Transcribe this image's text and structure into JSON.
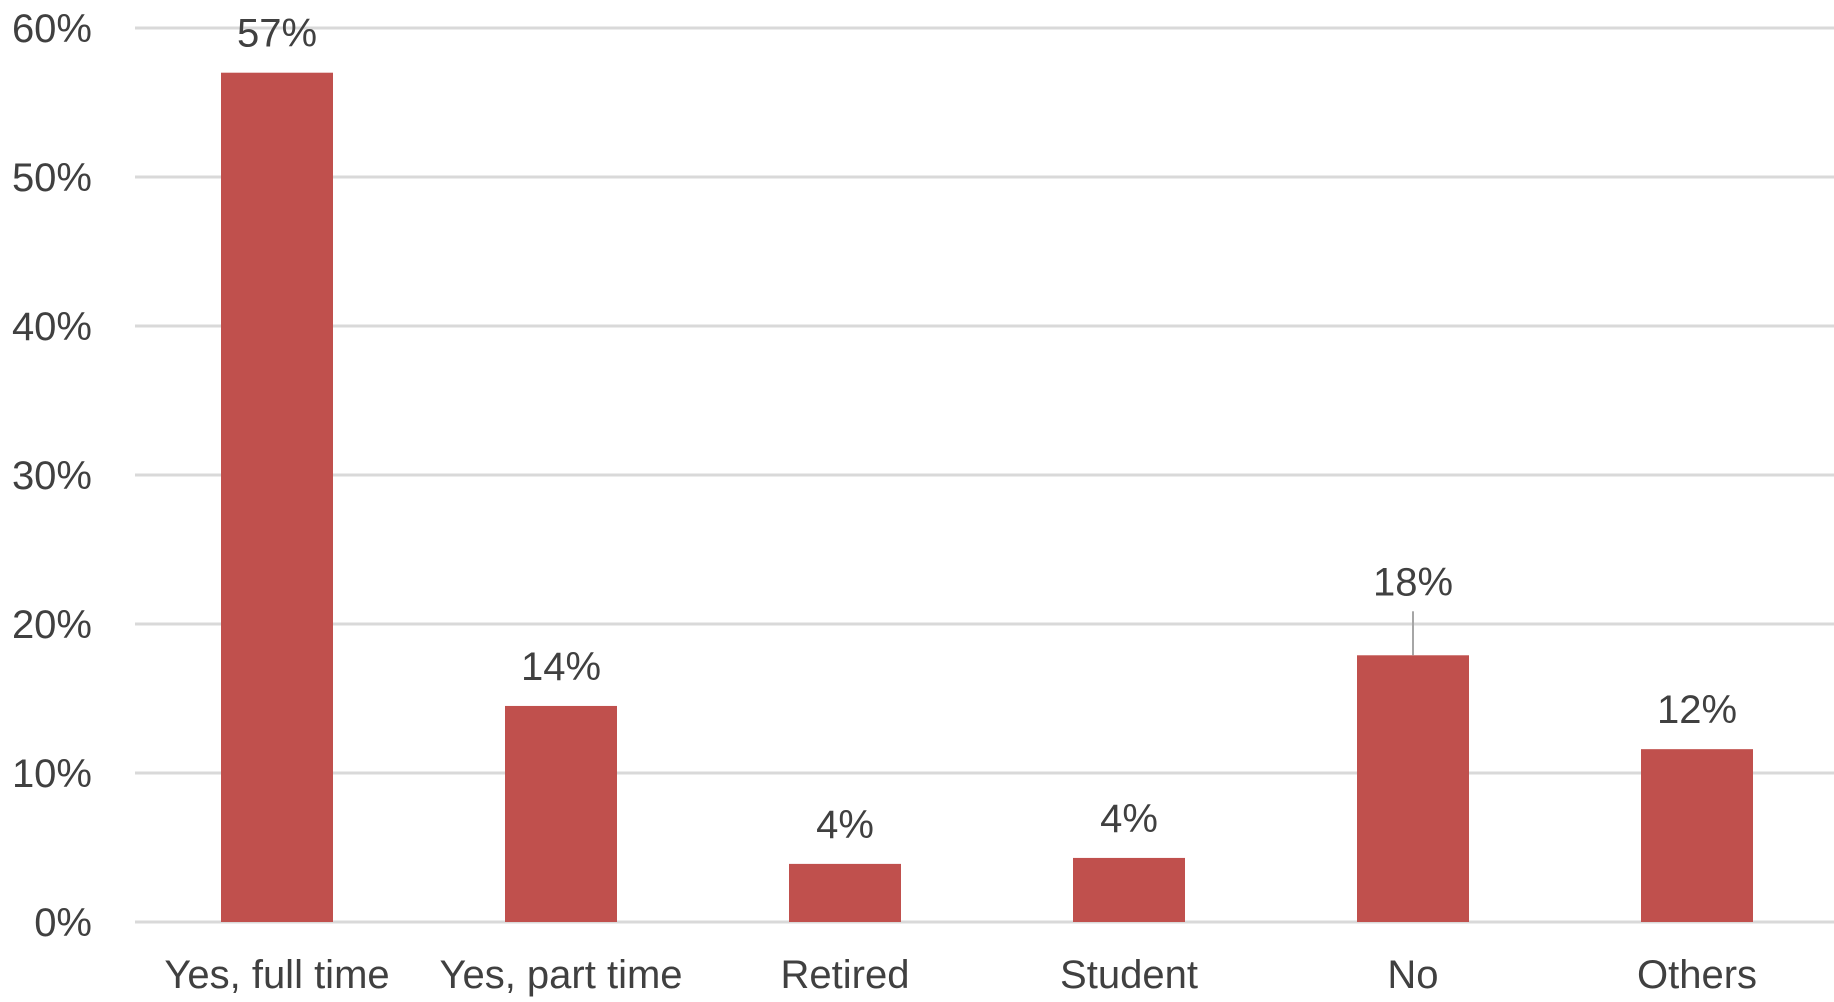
{
  "colors": {
    "bar": "#C0504D",
    "grid": "#D9D9D9",
    "text": "#404040"
  },
  "chart_data": {
    "type": "bar",
    "title": "",
    "xlabel": "",
    "ylabel": "",
    "grid": true,
    "legend": "none",
    "ylim": [
      0,
      60
    ],
    "yticks": [
      0,
      10,
      20,
      30,
      40,
      50,
      60
    ],
    "ytick_labels": [
      "0%",
      "10%",
      "20%",
      "30%",
      "40%",
      "50%",
      "60%"
    ],
    "categories": [
      "Yes, full time",
      "Yes, part time",
      "Retired",
      "Student",
      "No",
      "Others"
    ],
    "values": [
      57,
      14.5,
      3.9,
      4.3,
      17.9,
      11.6
    ],
    "data_labels": [
      "57%",
      "14%",
      "4%",
      "4%",
      "18%",
      "12%"
    ]
  }
}
